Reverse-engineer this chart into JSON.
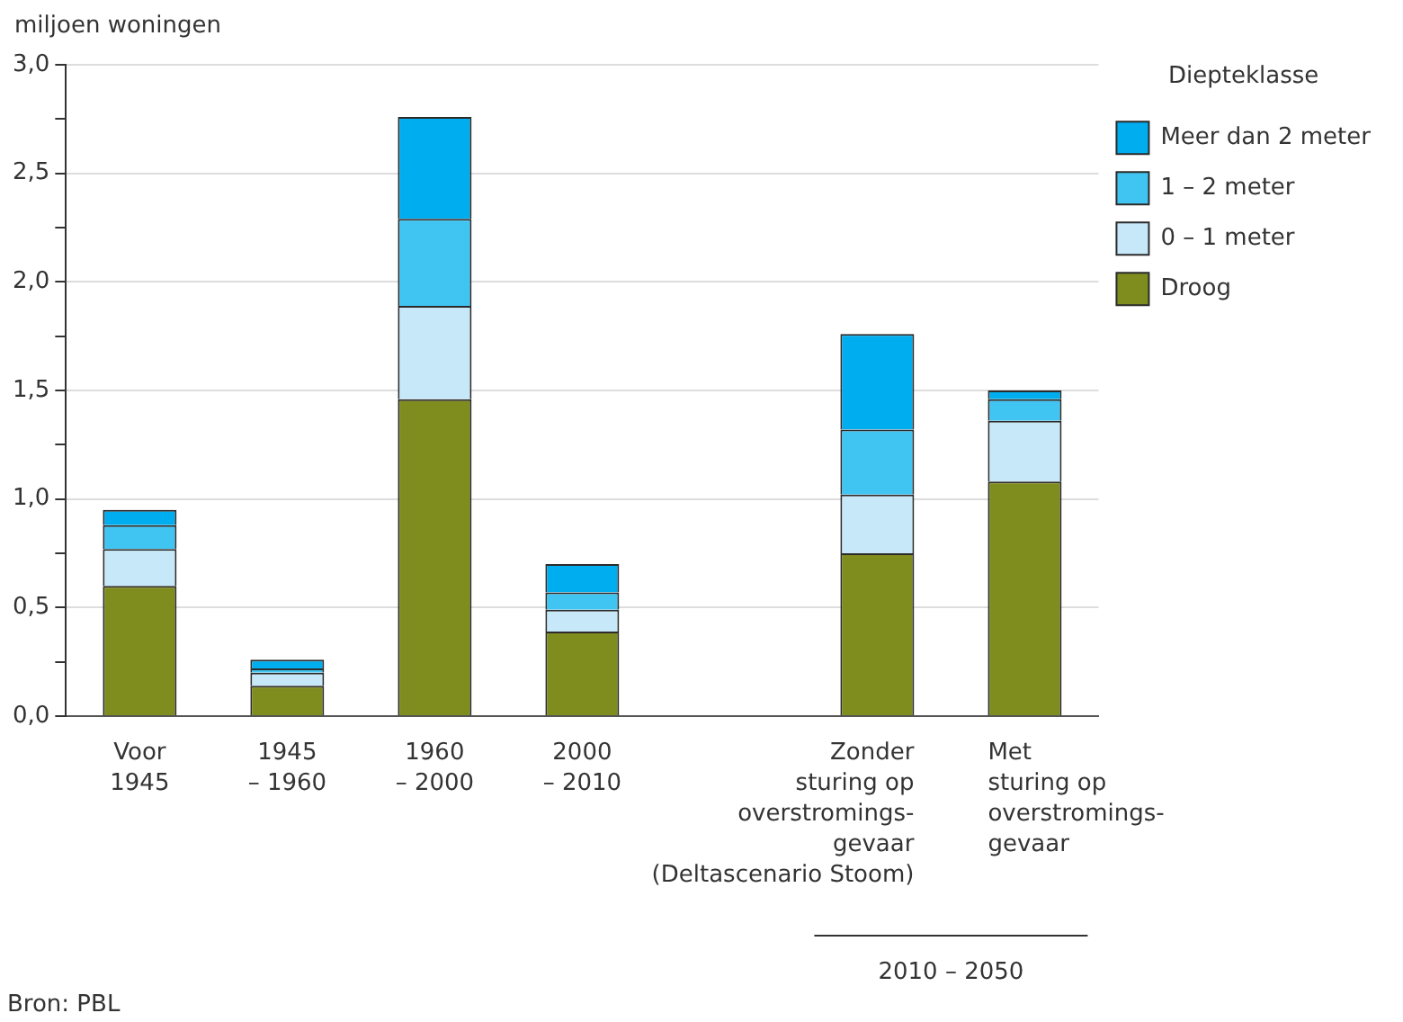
{
  "chart_data": {
    "type": "bar",
    "stacked": true,
    "ylabel": "miljoen woningen",
    "legend_title": "Diepteklasse",
    "legend": "top right",
    "grid": "y",
    "categories": [
      "Voor\n1945",
      "1945\n– 1960",
      "1960\n– 2000",
      "2000\n– 2010",
      null,
      "Zonder\nsturing op\noverstromings-\ngevaar\n(Deltascenario Stoom)",
      "Met\nsturing op\noverstromings-\ngevaar"
    ],
    "ylim": [
      0,
      3
    ],
    "yticks": [
      {
        "value": 0,
        "label": "0,0"
      },
      {
        "value": 0.25,
        "label": null
      },
      {
        "value": 0.5,
        "label": "0,5"
      },
      {
        "value": 0.75,
        "label": null
      },
      {
        "value": 1,
        "label": "1,0"
      },
      {
        "value": 1.25,
        "label": null
      },
      {
        "value": 1.5,
        "label": "1,5"
      },
      {
        "value": 1.75,
        "label": null
      },
      {
        "value": 2,
        "label": "2,0"
      },
      {
        "value": 2.25,
        "label": null
      },
      {
        "value": 2.5,
        "label": "2,5"
      },
      {
        "value": 2.75,
        "label": null
      },
      {
        "value": 3,
        "label": "3,0"
      }
    ],
    "series": [
      {
        "name": "Droog",
        "color": "#7f8c1e",
        "values": [
          0.6,
          0.14,
          1.46,
          0.39,
          null,
          0.75,
          1.08
        ]
      },
      {
        "name": "0 – 1 meter",
        "color": "#c6e8f8",
        "values": [
          0.17,
          0.06,
          0.43,
          0.1,
          null,
          0.27,
          0.28
        ]
      },
      {
        "name": "1 – 2 meter",
        "color": "#40c4f2",
        "values": [
          0.11,
          0.02,
          0.4,
          0.08,
          null,
          0.3,
          0.1
        ]
      },
      {
        "name": "Meer dan 2 meter",
        "color": "#00adee",
        "values": [
          0.07,
          0.04,
          0.47,
          0.13,
          null,
          0.44,
          0.04
        ]
      }
    ],
    "annotations": [
      "2010 – 2050",
      "Bron: PBL"
    ]
  }
}
